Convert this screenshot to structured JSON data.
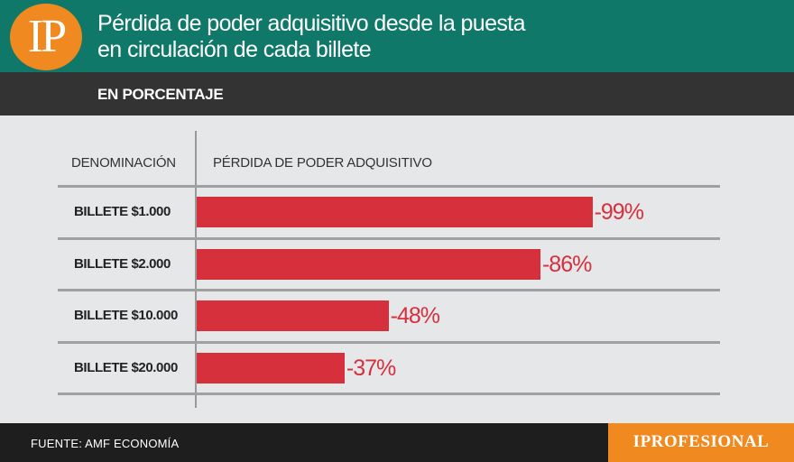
{
  "brand": {
    "logo_text": "IP",
    "footer_logo": "IPROFESIONAL",
    "accent_color": "#f0891f",
    "header_color": "#107868"
  },
  "header": {
    "title_line1": "Pérdida de poder adquisitivo desde la puesta",
    "title_line2": "en circulación de cada billete",
    "subtitle": "EN PORCENTAJE"
  },
  "table": {
    "col1_header": "DENOMINACIÓN",
    "col2_header": "PÉRDIDA DE PODER ADQUISITIVO"
  },
  "chart_data": {
    "type": "bar",
    "orientation": "horizontal",
    "categories": [
      "BILLETE $1.000",
      "BILLETE $2.000",
      "BILLETE $10.000",
      "BILLETE $20.000"
    ],
    "values": [
      -99,
      -86,
      -48,
      -37
    ],
    "value_labels": [
      "-99%",
      "-86%",
      "-48%",
      "-37%"
    ],
    "bar_color": "#d6303d",
    "grid": false,
    "xlim": [
      0,
      -100
    ]
  },
  "footer": {
    "source": "FUENTE:  AMF ECONOMÍA"
  }
}
